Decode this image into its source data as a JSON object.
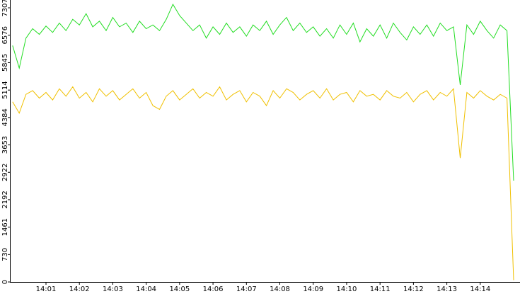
{
  "chart_data": {
    "type": "line",
    "x": [
      840.0,
      840.2,
      840.4,
      840.6,
      840.8,
      841.0,
      841.2,
      841.4,
      841.6,
      841.8,
      842.0,
      842.2,
      842.4,
      842.6,
      842.8,
      843.0,
      843.2,
      843.4,
      843.6,
      843.8,
      844.0,
      844.2,
      844.4,
      844.6,
      844.8,
      845.0,
      845.2,
      845.4,
      845.6,
      845.8,
      846.0,
      846.2,
      846.4,
      846.6,
      846.8,
      847.0,
      847.2,
      847.4,
      847.6,
      847.8,
      848.0,
      848.2,
      848.4,
      848.6,
      848.8,
      849.0,
      849.2,
      849.4,
      849.6,
      849.8,
      850.0,
      850.2,
      850.4,
      850.6,
      850.8,
      851.0,
      851.2,
      851.4,
      851.6,
      851.8,
      852.0,
      852.2,
      852.4,
      852.6,
      852.8,
      853.0,
      853.2,
      853.4,
      853.6,
      853.8,
      854.0,
      854.2,
      854.4,
      854.6,
      854.8,
      855.0
    ],
    "series": [
      {
        "color": "#22dd22",
        "values": [
          6300,
          5700,
          6500,
          6750,
          6600,
          6820,
          6650,
          6900,
          6700,
          7000,
          6850,
          7150,
          6800,
          6950,
          6700,
          7050,
          6800,
          6900,
          6650,
          6950,
          6750,
          6850,
          6700,
          7000,
          7400,
          7100,
          6900,
          6700,
          6850,
          6500,
          6800,
          6600,
          6900,
          6650,
          6800,
          6550,
          6850,
          6700,
          6950,
          6600,
          6850,
          7050,
          6700,
          6900,
          6650,
          6800,
          6550,
          6750,
          6500,
          6850,
          6600,
          6900,
          6400,
          6750,
          6550,
          6850,
          6500,
          6900,
          6650,
          6450,
          6800,
          6600,
          6850,
          6550,
          6900,
          6700,
          6800,
          5250,
          6850,
          6600,
          6950,
          6700,
          6500,
          6850,
          6700,
          2700
        ]
      },
      {
        "color": "#f0c000",
        "values": [
          4800,
          4500,
          5000,
          5100,
          4900,
          5050,
          4850,
          5150,
          4950,
          5200,
          4900,
          5050,
          4800,
          5150,
          4950,
          5100,
          4850,
          5000,
          5150,
          4900,
          5050,
          4700,
          4600,
          4950,
          5100,
          4850,
          5000,
          5150,
          4900,
          5050,
          4950,
          5200,
          4850,
          5000,
          5100,
          4800,
          5050,
          4950,
          4700,
          5100,
          4900,
          5150,
          5050,
          4850,
          5000,
          5100,
          4900,
          5150,
          4850,
          5000,
          5050,
          4800,
          5100,
          4950,
          5000,
          4850,
          5100,
          4950,
          4900,
          5050,
          4800,
          5000,
          5100,
          4850,
          5050,
          4950,
          5150,
          3300,
          5050,
          4900,
          5100,
          4950,
          4850,
          5000,
          4900,
          50
        ]
      }
    ],
    "xlim": [
      839.92,
      855.19
    ],
    "xticks": [
      {
        "value": 841,
        "label": "14:01"
      },
      {
        "value": 842,
        "label": "14:02"
      },
      {
        "value": 843,
        "label": "14:03"
      },
      {
        "value": 844,
        "label": "14:04"
      },
      {
        "value": 845,
        "label": "14:05"
      },
      {
        "value": 846,
        "label": "14:06"
      },
      {
        "value": 847,
        "label": "14:07"
      },
      {
        "value": 848,
        "label": "14:08"
      },
      {
        "value": 849,
        "label": "14:09"
      },
      {
        "value": 850,
        "label": "14:10"
      },
      {
        "value": 851,
        "label": "14:11"
      },
      {
        "value": 852,
        "label": "14:12"
      },
      {
        "value": 853,
        "label": "14:13"
      },
      {
        "value": 854,
        "label": "14:14"
      }
    ],
    "ylim": [
      0,
      7515
    ],
    "yticks": [
      0,
      730,
      1461,
      2192,
      2922,
      3653,
      4384,
      5114,
      5845,
      6576,
      7307
    ],
    "grid": false
  }
}
